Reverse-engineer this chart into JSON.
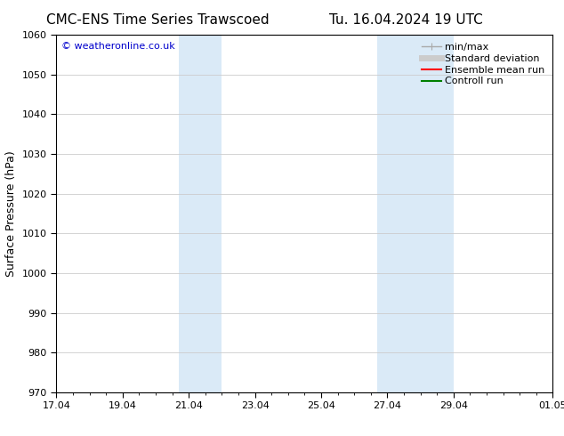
{
  "title_left": "CMC-ENS Time Series Trawscoed",
  "title_right": "Tu. 16.04.2024 19 UTC",
  "ylabel": "Surface Pressure (hPa)",
  "ylim": [
    970,
    1060
  ],
  "yticks": [
    970,
    980,
    990,
    1000,
    1010,
    1020,
    1030,
    1040,
    1050,
    1060
  ],
  "xtick_labels": [
    "17.04",
    "19.04",
    "21.04",
    "23.04",
    "25.04",
    "27.04",
    "29.04",
    "01.05"
  ],
  "xtick_positions": [
    0,
    2,
    4,
    6,
    8,
    10,
    12,
    15
  ],
  "x_min": 0,
  "x_max": 15,
  "shaded_regions": [
    {
      "x_start": 3.7,
      "x_end": 5.0
    },
    {
      "x_start": 9.7,
      "x_end": 12.0
    }
  ],
  "shaded_color": "#daeaf7",
  "watermark": "© weatheronline.co.uk",
  "watermark_color": "#0000cc",
  "background_color": "#ffffff",
  "legend_items": [
    {
      "label": "min/max",
      "color": "#aaaaaa",
      "lw": 1.0
    },
    {
      "label": "Standard deviation",
      "color": "#cccccc",
      "lw": 5
    },
    {
      "label": "Ensemble mean run",
      "color": "#ff0000",
      "lw": 1.5
    },
    {
      "label": "Controll run",
      "color": "#008000",
      "lw": 1.5
    }
  ],
  "grid_color": "#cccccc",
  "tick_color": "#000000",
  "title_fontsize": 11,
  "label_fontsize": 9,
  "tick_fontsize": 8,
  "watermark_fontsize": 8,
  "legend_fontsize": 8
}
